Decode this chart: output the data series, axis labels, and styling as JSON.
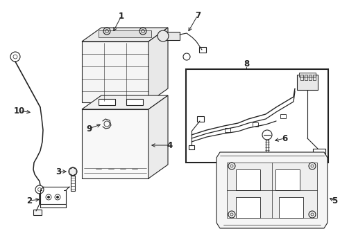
{
  "bg_color": "#ffffff",
  "line_color": "#222222",
  "figsize": [
    4.9,
    3.6
  ],
  "dpi": 100
}
